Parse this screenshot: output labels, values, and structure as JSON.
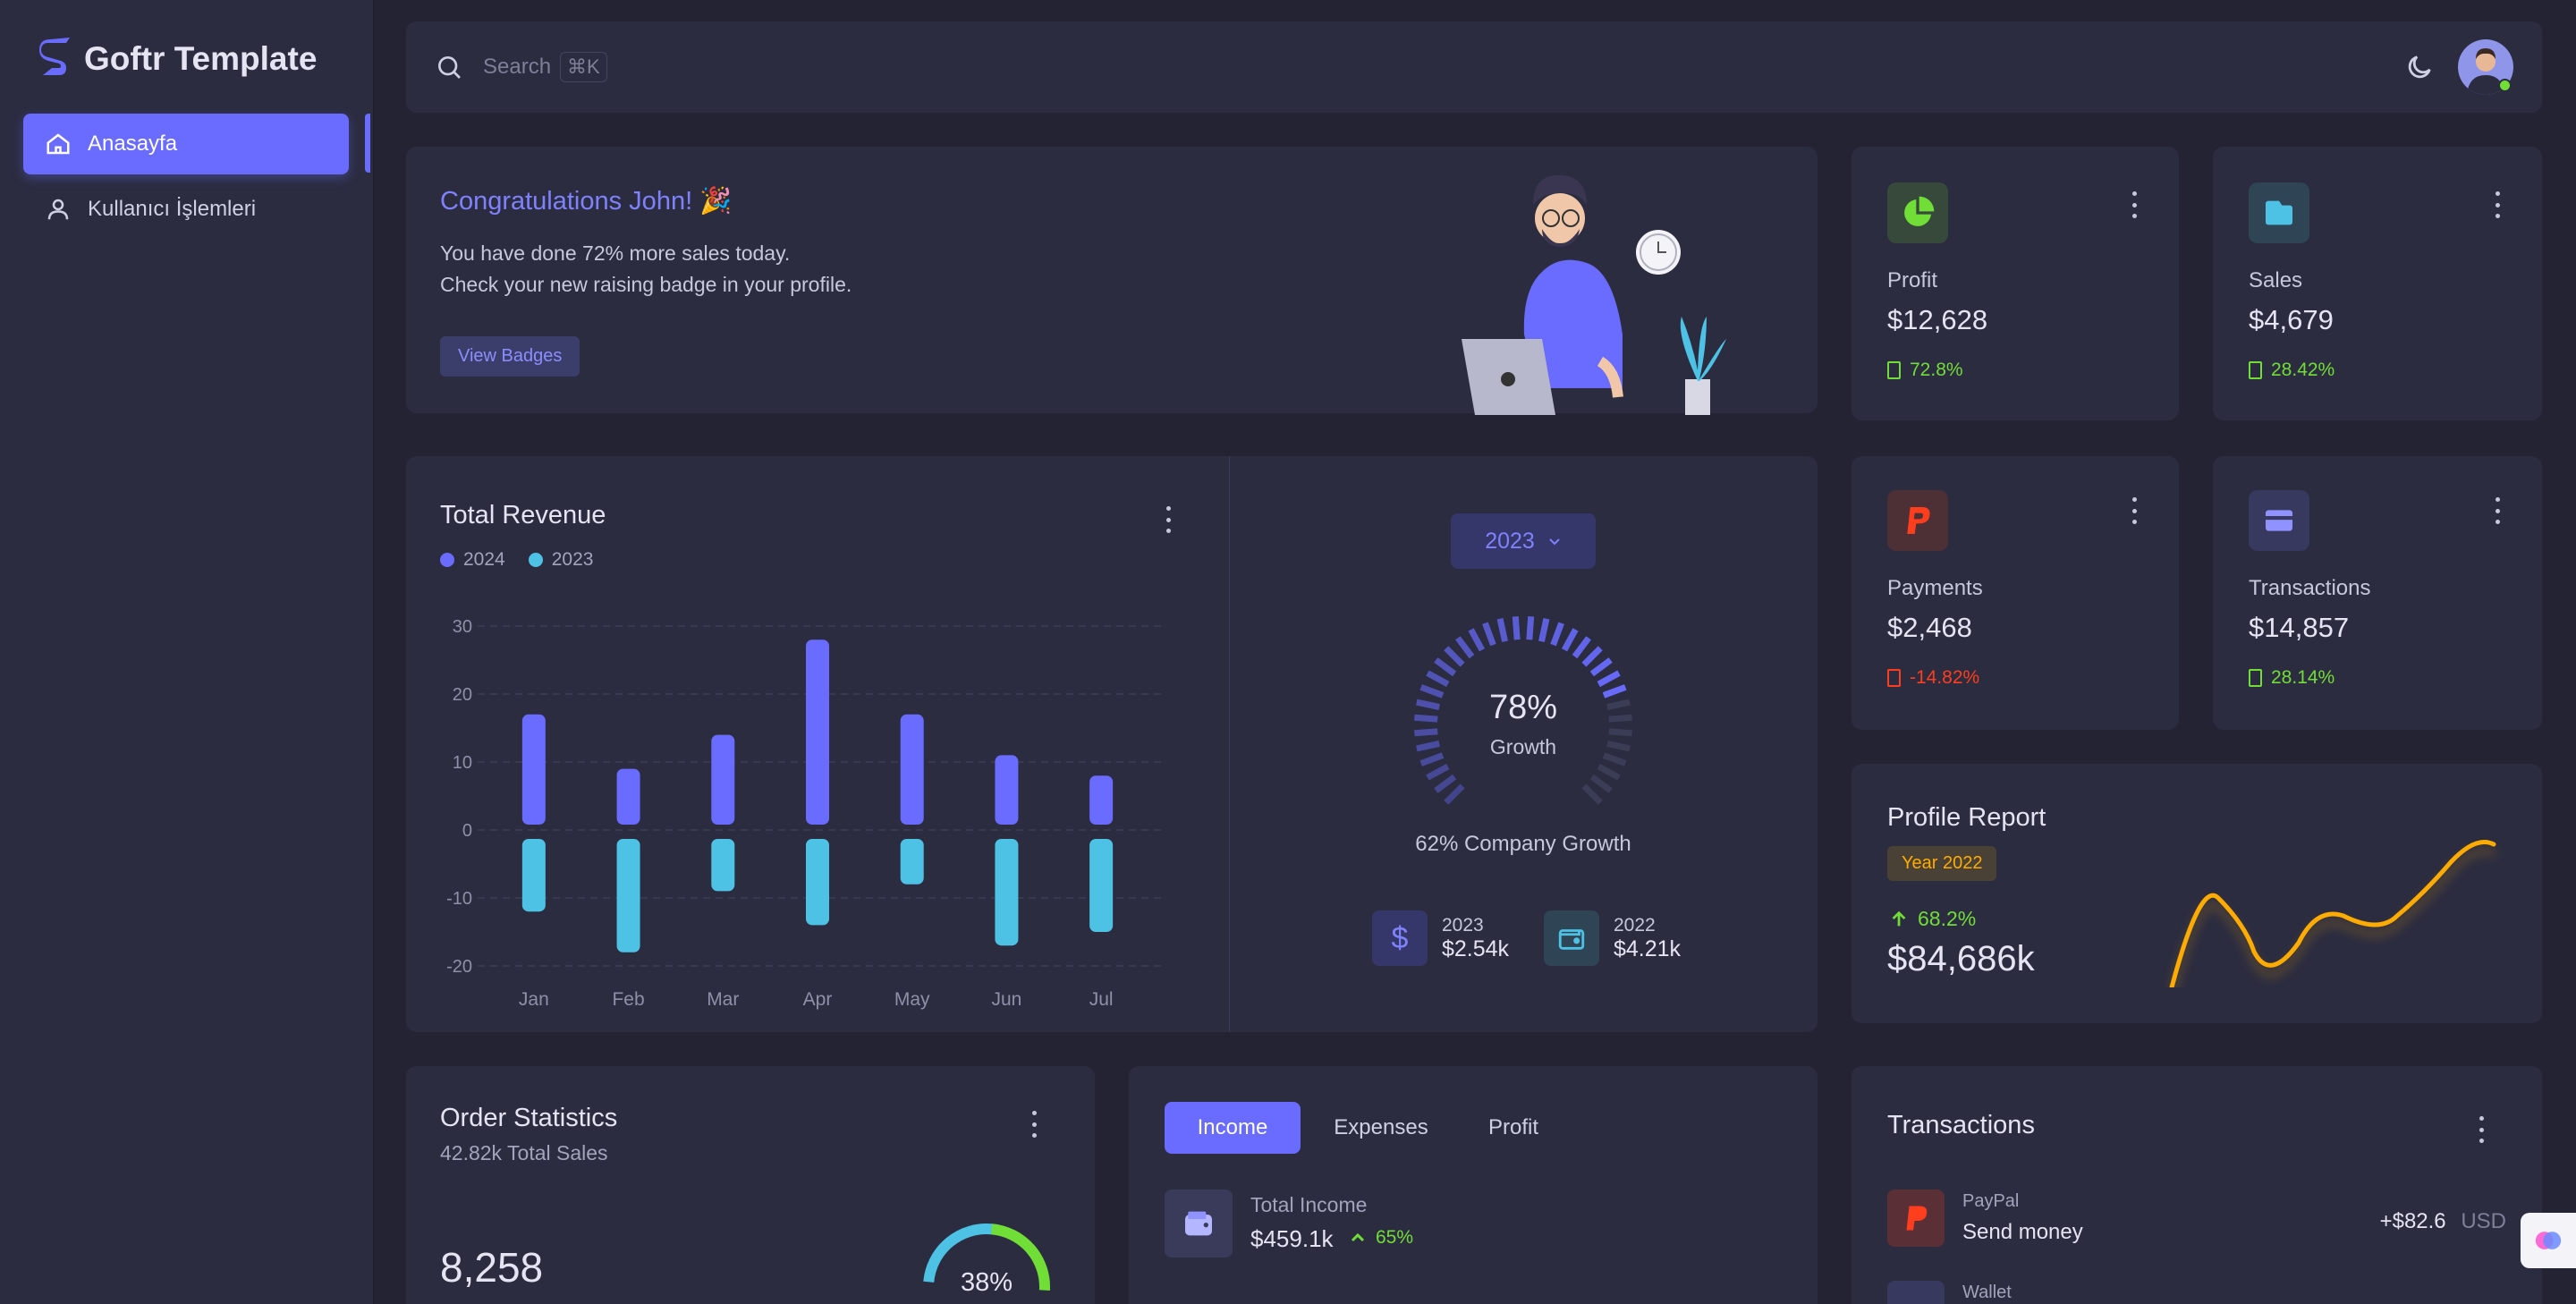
{
  "brand": {
    "name": "Goftr Template"
  },
  "sidebar": {
    "items": [
      {
        "label": "Anasayfa"
      },
      {
        "label": "Kullanıcı İşlemleri"
      }
    ]
  },
  "topbar": {
    "search_placeholder": "Search",
    "search_shortcut": "⌘K"
  },
  "welcome": {
    "title": "Congratulations John! 🎉",
    "line1": "You have done 72% more sales today.",
    "line2": "Check your new raising badge in your profile.",
    "button": "View Badges"
  },
  "stats": [
    {
      "label": "Profit",
      "value": "$12,628",
      "change": "72.8%",
      "icon": "pie-chart-icon",
      "status": "up"
    },
    {
      "label": "Sales",
      "value": "$4,679",
      "change": "28.42%",
      "icon": "wallet-icon",
      "status": "up"
    },
    {
      "label": "Payments",
      "value": "$2,468",
      "change": "-14.82%",
      "icon": "paypal-icon",
      "status": "down"
    },
    {
      "label": "Transactions",
      "value": "$14,857",
      "change": "28.14%",
      "icon": "credit-card-icon",
      "status": "up"
    }
  ],
  "revenue": {
    "title": "Total Revenue",
    "year_select": "2023",
    "growth_percent": "78%",
    "growth_label": "Growth",
    "company_growth": "62% Company Growth",
    "summary": [
      {
        "year": "2023",
        "amount": "$2.54k",
        "icon": "dollar-icon"
      },
      {
        "year": "2022",
        "amount": "$4.21k",
        "icon": "wallet-icon"
      }
    ]
  },
  "chart_data": {
    "type": "bar",
    "title": "Total Revenue",
    "categories": [
      "Jan",
      "Feb",
      "Mar",
      "Apr",
      "May",
      "Jun",
      "Jul"
    ],
    "series": [
      {
        "name": "2024",
        "values": [
          17,
          9,
          14,
          28,
          17,
          11,
          8
        ],
        "color": "#696cff"
      },
      {
        "name": "2023",
        "values": [
          -12,
          -18,
          -9,
          -14,
          -8,
          -17,
          -15
        ],
        "color": "#4ec2e5"
      }
    ],
    "yticks": [
      30,
      20,
      10,
      0,
      -10,
      -20
    ],
    "ylim": [
      -20,
      30
    ],
    "grid": true,
    "legend": "top-left"
  },
  "profile_report": {
    "title": "Profile Report",
    "badge": "Year 2022",
    "change": "68.2%",
    "value": "$84,686k"
  },
  "order_stats": {
    "title": "Order Statistics",
    "subtitle": "42.82k Total Sales",
    "value": "8,258",
    "percent": "38%"
  },
  "income_tabs": {
    "tabs": [
      "Income",
      "Expenses",
      "Profit"
    ],
    "label": "Total Income",
    "value": "$459.1k",
    "change": "65%"
  },
  "transactions": {
    "title": "Transactions",
    "items": [
      {
        "source": "PayPal",
        "desc": "Send money",
        "amount": "+$82.6",
        "currency": "USD"
      },
      {
        "source": "Wallet",
        "desc": "",
        "amount": "",
        "currency": ""
      }
    ]
  },
  "colors": {
    "primary": "#696cff",
    "success": "#71dd37",
    "danger": "#ff3e1d",
    "info": "#03c3ec",
    "warning": "#ffab00",
    "cyan": "#4ec2e5"
  }
}
